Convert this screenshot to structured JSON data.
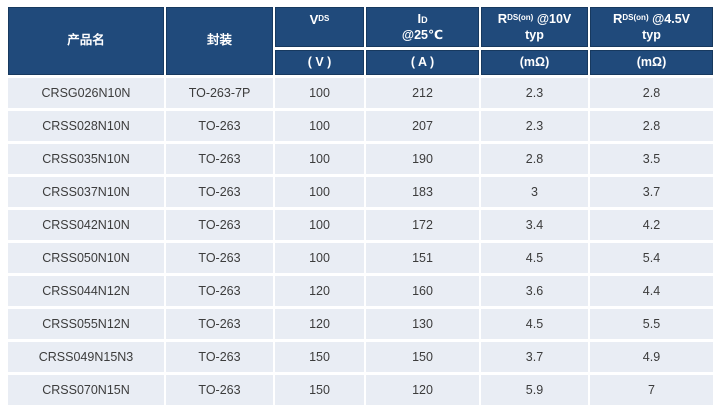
{
  "colors": {
    "header_bg": "#204a7b",
    "header_border": "#17395f",
    "header_text": "#ffffff",
    "row_bg": "#e9edf4",
    "row_text": "#3c3c3c",
    "page_bg": "#ffffff"
  },
  "header": {
    "product": {
      "label": "产品名"
    },
    "package": {
      "label": "封装"
    },
    "vds": {
      "sym": "V",
      "sub": "DS",
      "unit": "( V )"
    },
    "id": {
      "sym": "I",
      "sub": "D",
      "cond": "@25℃",
      "unit": "( A )"
    },
    "rds10": {
      "sym": "R",
      "sub": "DS(on)",
      "cond": "@10V",
      "line2": "typ",
      "unit": "(mΩ)"
    },
    "rds45": {
      "sym": "R",
      "sub": "DS(on)",
      "cond": "@4.5V",
      "line2": "typ",
      "unit": "(mΩ)"
    }
  },
  "table": {
    "rows": [
      [
        "CRSG026N10N",
        "TO-263-7P",
        "100",
        "212",
        "2.3",
        "2.8"
      ],
      [
        "CRSS028N10N",
        "TO-263",
        "100",
        "207",
        "2.3",
        "2.8"
      ],
      [
        "CRSS035N10N",
        "TO-263",
        "100",
        "190",
        "2.8",
        "3.5"
      ],
      [
        "CRSS037N10N",
        "TO-263",
        "100",
        "183",
        "3",
        "3.7"
      ],
      [
        "CRSS042N10N",
        "TO-263",
        "100",
        "172",
        "3.4",
        "4.2"
      ],
      [
        "CRSS050N10N",
        "TO-263",
        "100",
        "151",
        "4.5",
        "5.4"
      ],
      [
        "CRSS044N12N",
        "TO-263",
        "120",
        "160",
        "3.6",
        "4.4"
      ],
      [
        "CRSS055N12N",
        "TO-263",
        "120",
        "130",
        "4.5",
        "5.5"
      ],
      [
        "CRSS049N15N3",
        "TO-263",
        "150",
        "150",
        "3.7",
        "4.9"
      ],
      [
        "CRSS070N15N",
        "TO-263",
        "150",
        "120",
        "5.9",
        "7"
      ]
    ]
  }
}
